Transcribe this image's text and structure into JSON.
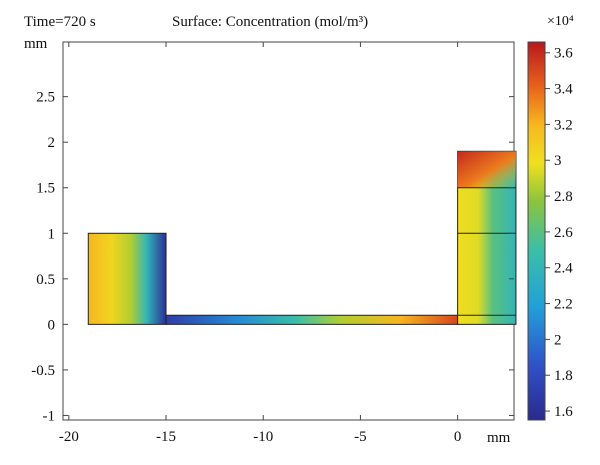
{
  "chart_data": {
    "type": "heatmap",
    "time_label": "Time=720 s",
    "title": "Surface: Concentration (mol/m³)",
    "x_unit": "mm",
    "y_unit": "mm",
    "xlim": [
      -20.3,
      2.9
    ],
    "ylim": [
      -1.05,
      3.1
    ],
    "x_ticks": [
      -20,
      -15,
      -10,
      -5,
      0
    ],
    "x_tick_labels": [
      "-20",
      "-15",
      "-10",
      "-5",
      "0"
    ],
    "y_ticks": [
      -1,
      -0.5,
      0,
      0.5,
      1,
      1.5,
      2,
      2.5
    ],
    "y_tick_labels": [
      "-1",
      "-0.5",
      "0",
      "0.5",
      "1",
      "1.5",
      "2",
      "2.5"
    ],
    "colorbar": {
      "colormap": "rainbow (blue-cyan-green-yellow-orange-red)",
      "exponent_label": "×10⁴",
      "range": [
        1.55,
        3.66
      ],
      "ticks": [
        1.6,
        1.8,
        2,
        2.2,
        2.4,
        2.6,
        2.8,
        3,
        3.2,
        3.4,
        3.6
      ],
      "tick_labels": [
        "1.6",
        "1.8",
        "2",
        "2.2",
        "2.4",
        "2.6",
        "2.8",
        "3",
        "3.2",
        "3.4",
        "3.6"
      ]
    },
    "domains": [
      {
        "name": "left-reservoir",
        "x": [
          -19,
          -15
        ],
        "y": [
          0,
          1
        ],
        "gradient_axis": "x",
        "stops": [
          [
            0,
            3.2
          ],
          [
            0.3,
            3.05
          ],
          [
            0.55,
            2.85
          ],
          [
            0.75,
            2.4
          ],
          [
            1,
            1.6
          ]
        ]
      },
      {
        "name": "channel",
        "x": [
          -15,
          0
        ],
        "y": [
          0,
          0.1
        ],
        "gradient_axis": "x",
        "stops": [
          [
            0,
            1.7
          ],
          [
            0.25,
            2.1
          ],
          [
            0.45,
            2.5
          ],
          [
            0.6,
            2.85
          ],
          [
            0.8,
            3.2
          ],
          [
            1,
            3.5
          ]
        ]
      },
      {
        "name": "right-reservoir",
        "x": [
          0,
          3
        ],
        "y": [
          0,
          1.9
        ],
        "gradient_axis": "x",
        "stops": [
          [
            0,
            3.0
          ],
          [
            0.35,
            2.95
          ],
          [
            0.6,
            2.6
          ],
          [
            1,
            2.4
          ]
        ]
      }
    ],
    "internal_boundaries": [
      {
        "x": [
          0,
          3
        ],
        "y": [
          1,
          1
        ]
      },
      {
        "x": [
          0,
          3
        ],
        "y": [
          1.5,
          1.5
        ]
      },
      {
        "x": [
          0,
          3
        ],
        "y": [
          0.1,
          0.1
        ]
      }
    ],
    "hot_spot": {
      "x": [
        0,
        3
      ],
      "y": [
        1.5,
        1.9
      ],
      "value": 3.6
    }
  }
}
